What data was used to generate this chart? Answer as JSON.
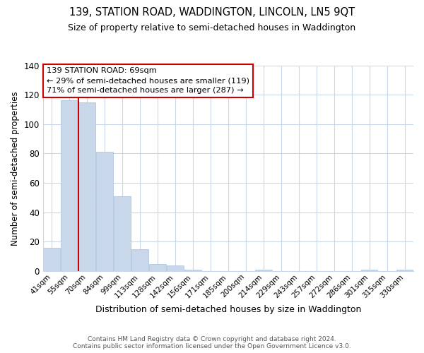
{
  "title1": "139, STATION ROAD, WADDINGTON, LINCOLN, LN5 9QT",
  "title2": "Size of property relative to semi-detached houses in Waddington",
  "xlabel": "Distribution of semi-detached houses by size in Waddington",
  "ylabel": "Number of semi-detached properties",
  "bar_labels": [
    "41sqm",
    "55sqm",
    "70sqm",
    "84sqm",
    "99sqm",
    "113sqm",
    "128sqm",
    "142sqm",
    "156sqm",
    "171sqm",
    "185sqm",
    "200sqm",
    "214sqm",
    "229sqm",
    "243sqm",
    "257sqm",
    "272sqm",
    "286sqm",
    "301sqm",
    "315sqm",
    "330sqm"
  ],
  "bar_values": [
    16,
    116,
    115,
    81,
    51,
    15,
    5,
    4,
    1,
    0,
    0,
    0,
    1,
    0,
    0,
    0,
    0,
    0,
    1,
    0,
    1
  ],
  "bar_color": "#c8d8ea",
  "vline_color": "#cc0000",
  "vline_x": 1.5,
  "ylim": [
    0,
    140
  ],
  "yticks": [
    0,
    20,
    40,
    60,
    80,
    100,
    120,
    140
  ],
  "annotation_title": "139 STATION ROAD: 69sqm",
  "annotation_line1": "← 29% of semi-detached houses are smaller (119)",
  "annotation_line2": "71% of semi-detached houses are larger (287) →",
  "annotation_box_color": "#ffffff",
  "annotation_box_edge": "#cc0000",
  "footer1": "Contains HM Land Registry data © Crown copyright and database right 2024.",
  "footer2": "Contains public sector information licensed under the Open Government Licence v3.0.",
  "background_color": "#ffffff",
  "grid_color": "#c8d8ea"
}
